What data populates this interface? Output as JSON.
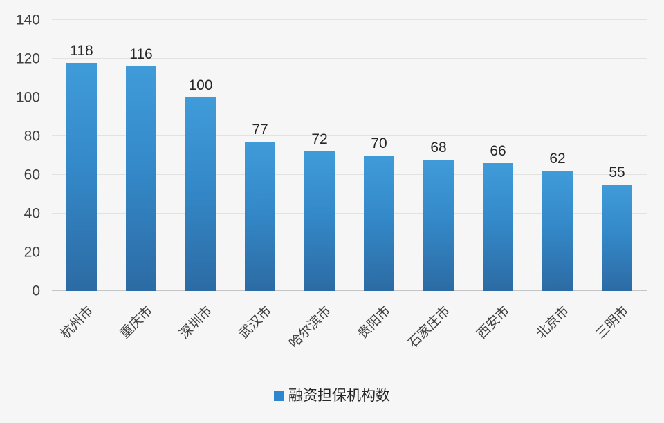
{
  "chart_data": {
    "type": "bar",
    "categories": [
      "杭州市",
      "重庆市",
      "深圳市",
      "武汉市",
      "哈尔滨市",
      "贵阳市",
      "石家庄市",
      "西安市",
      "北京市",
      "三明市"
    ],
    "values": [
      118,
      116,
      100,
      77,
      72,
      70,
      68,
      66,
      62,
      55
    ],
    "title": "",
    "xlabel": "",
    "ylabel": "",
    "ylim": [
      0,
      140
    ],
    "yticks": [
      0,
      20,
      40,
      60,
      80,
      100,
      120,
      140
    ],
    "grid": "horizontal",
    "legend": "融资担保机构数",
    "legend_position": "bottom-center",
    "bar_color_top": "#409bd9",
    "bar_color_bottom": "#2c6ba4",
    "legend_swatch_color": "#2e86cf"
  }
}
